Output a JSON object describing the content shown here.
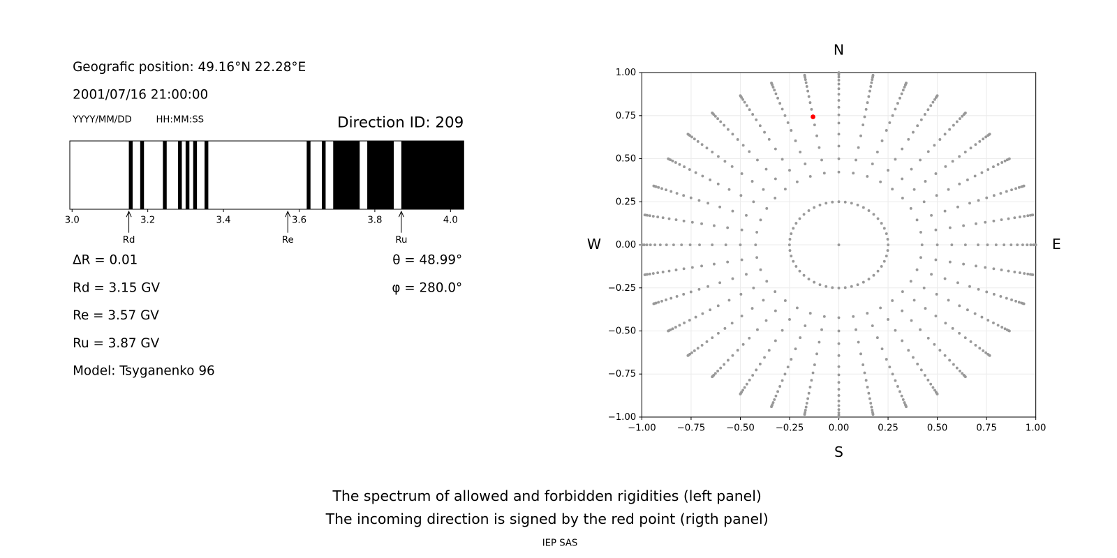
{
  "header": {
    "position": "Geografic position: 49.16°N 22.28°E",
    "datetime": "2001/07/16 21:00:00",
    "date_format": "YYYY/MM/DD",
    "time_format": "HH:MM:SS",
    "direction": "Direction ID: 209"
  },
  "results": {
    "delta": "ΔR = 0.01",
    "rd": "Rd = 3.15 GV",
    "re": "Re = 3.57 GV",
    "ru": "Ru = 3.87 GV",
    "model": "Model: Tsyganenko 96",
    "theta": "θ = 48.99°",
    "phi": "φ = 280.0°"
  },
  "chart_data": [
    {
      "type": "spectrum",
      "xlim": [
        2.994,
        4.035
      ],
      "xticks": [
        {
          "value": 3,
          "label": "3.0"
        },
        3.2,
        3.4,
        3.6,
        3.8,
        {
          "value": 4,
          "label": "4.0"
        }
      ],
      "color": "#000000",
      "bands": [
        [
          3.15,
          3.16
        ],
        [
          3.18,
          3.19
        ],
        [
          3.24,
          3.25
        ],
        [
          3.28,
          3.29
        ],
        [
          3.3,
          3.31
        ],
        [
          3.32,
          3.33
        ],
        [
          3.35,
          3.36
        ],
        [
          3.62,
          3.63
        ],
        [
          3.66,
          3.67
        ],
        [
          3.69,
          3.76
        ],
        [
          3.78,
          3.85
        ],
        [
          3.87,
          4.035
        ]
      ],
      "markers": [
        {
          "name": "Rd",
          "value": 3.15
        },
        {
          "name": "Re",
          "value": 3.57
        },
        {
          "name": "Ru",
          "value": 3.87
        }
      ]
    },
    {
      "type": "sky",
      "xlim": [
        -1,
        1
      ],
      "ylim": [
        -1,
        1
      ],
      "xticks": [
        {
          "value": -1,
          "label": "−1.00"
        },
        {
          "value": -0.75,
          "label": "−0.75"
        },
        {
          "value": -0.5,
          "label": "−0.50"
        },
        {
          "value": -0.25,
          "label": "−0.25"
        },
        {
          "value": 0,
          "label": "0.00"
        },
        {
          "value": 0.25,
          "label": "0.25"
        },
        {
          "value": 0.5,
          "label": "0.50"
        },
        {
          "value": 0.75,
          "label": "0.75"
        },
        {
          "value": 1,
          "label": "1.00"
        }
      ],
      "yticks": [
        {
          "value": -1,
          "label": "−1.00"
        },
        {
          "value": -0.75,
          "label": "−0.75"
        },
        {
          "value": -0.5,
          "label": "−0.50"
        },
        {
          "value": -0.25,
          "label": "−0.25"
        },
        {
          "value": 0,
          "label": "0.00"
        },
        {
          "value": 0.25,
          "label": "0.25"
        },
        {
          "value": 0.5,
          "label": "0.50"
        },
        {
          "value": 0.75,
          "label": "0.75"
        },
        {
          "value": 1,
          "label": "1.00"
        }
      ],
      "grid": true,
      "compass": {
        "north": "N",
        "south": "S",
        "west": "W",
        "east": "E"
      },
      "color": "#999999",
      "spokes": {
        "theta": [
          25,
          30,
          35,
          40,
          45,
          49,
          53,
          57,
          61,
          65,
          69,
          73,
          77,
          81,
          85,
          90
        ],
        "phi": [
          0,
          10,
          20,
          30,
          40,
          50,
          60,
          70,
          80,
          90,
          100,
          110,
          120,
          130,
          140,
          150,
          160,
          170,
          180,
          190,
          200,
          210,
          220,
          230,
          240,
          250,
          260,
          270,
          280,
          290,
          300,
          310,
          320,
          330,
          340,
          350
        ]
      },
      "ring": {
        "theta": 14.5,
        "phi": [
          0,
          7.5,
          15,
          22.5,
          30,
          37.5,
          45,
          52.5,
          60,
          67.5,
          75,
          82.5,
          90,
          97.5,
          105,
          112.5,
          120,
          127.5,
          135,
          142.5,
          150,
          157.5,
          165,
          172.5,
          180,
          187.5,
          195,
          202.5,
          210,
          217.5,
          225,
          232.5,
          240,
          247.5,
          255,
          262.5,
          270,
          277.5,
          285,
          292.5,
          300,
          307.5,
          315,
          322.5,
          330,
          337.5,
          345,
          352.5
        ]
      },
      "center": {
        "theta": 0,
        "phi": 0
      },
      "selected": {
        "theta": 48.99,
        "phi": 280.0,
        "color": "#ff0000"
      }
    }
  ],
  "caption": {
    "line1": "The spectrum of allowed and forbidden rigidities (left panel)",
    "line2": "The incoming direction is signed by the red point (rigth panel)",
    "credit": "IEP SAS"
  }
}
